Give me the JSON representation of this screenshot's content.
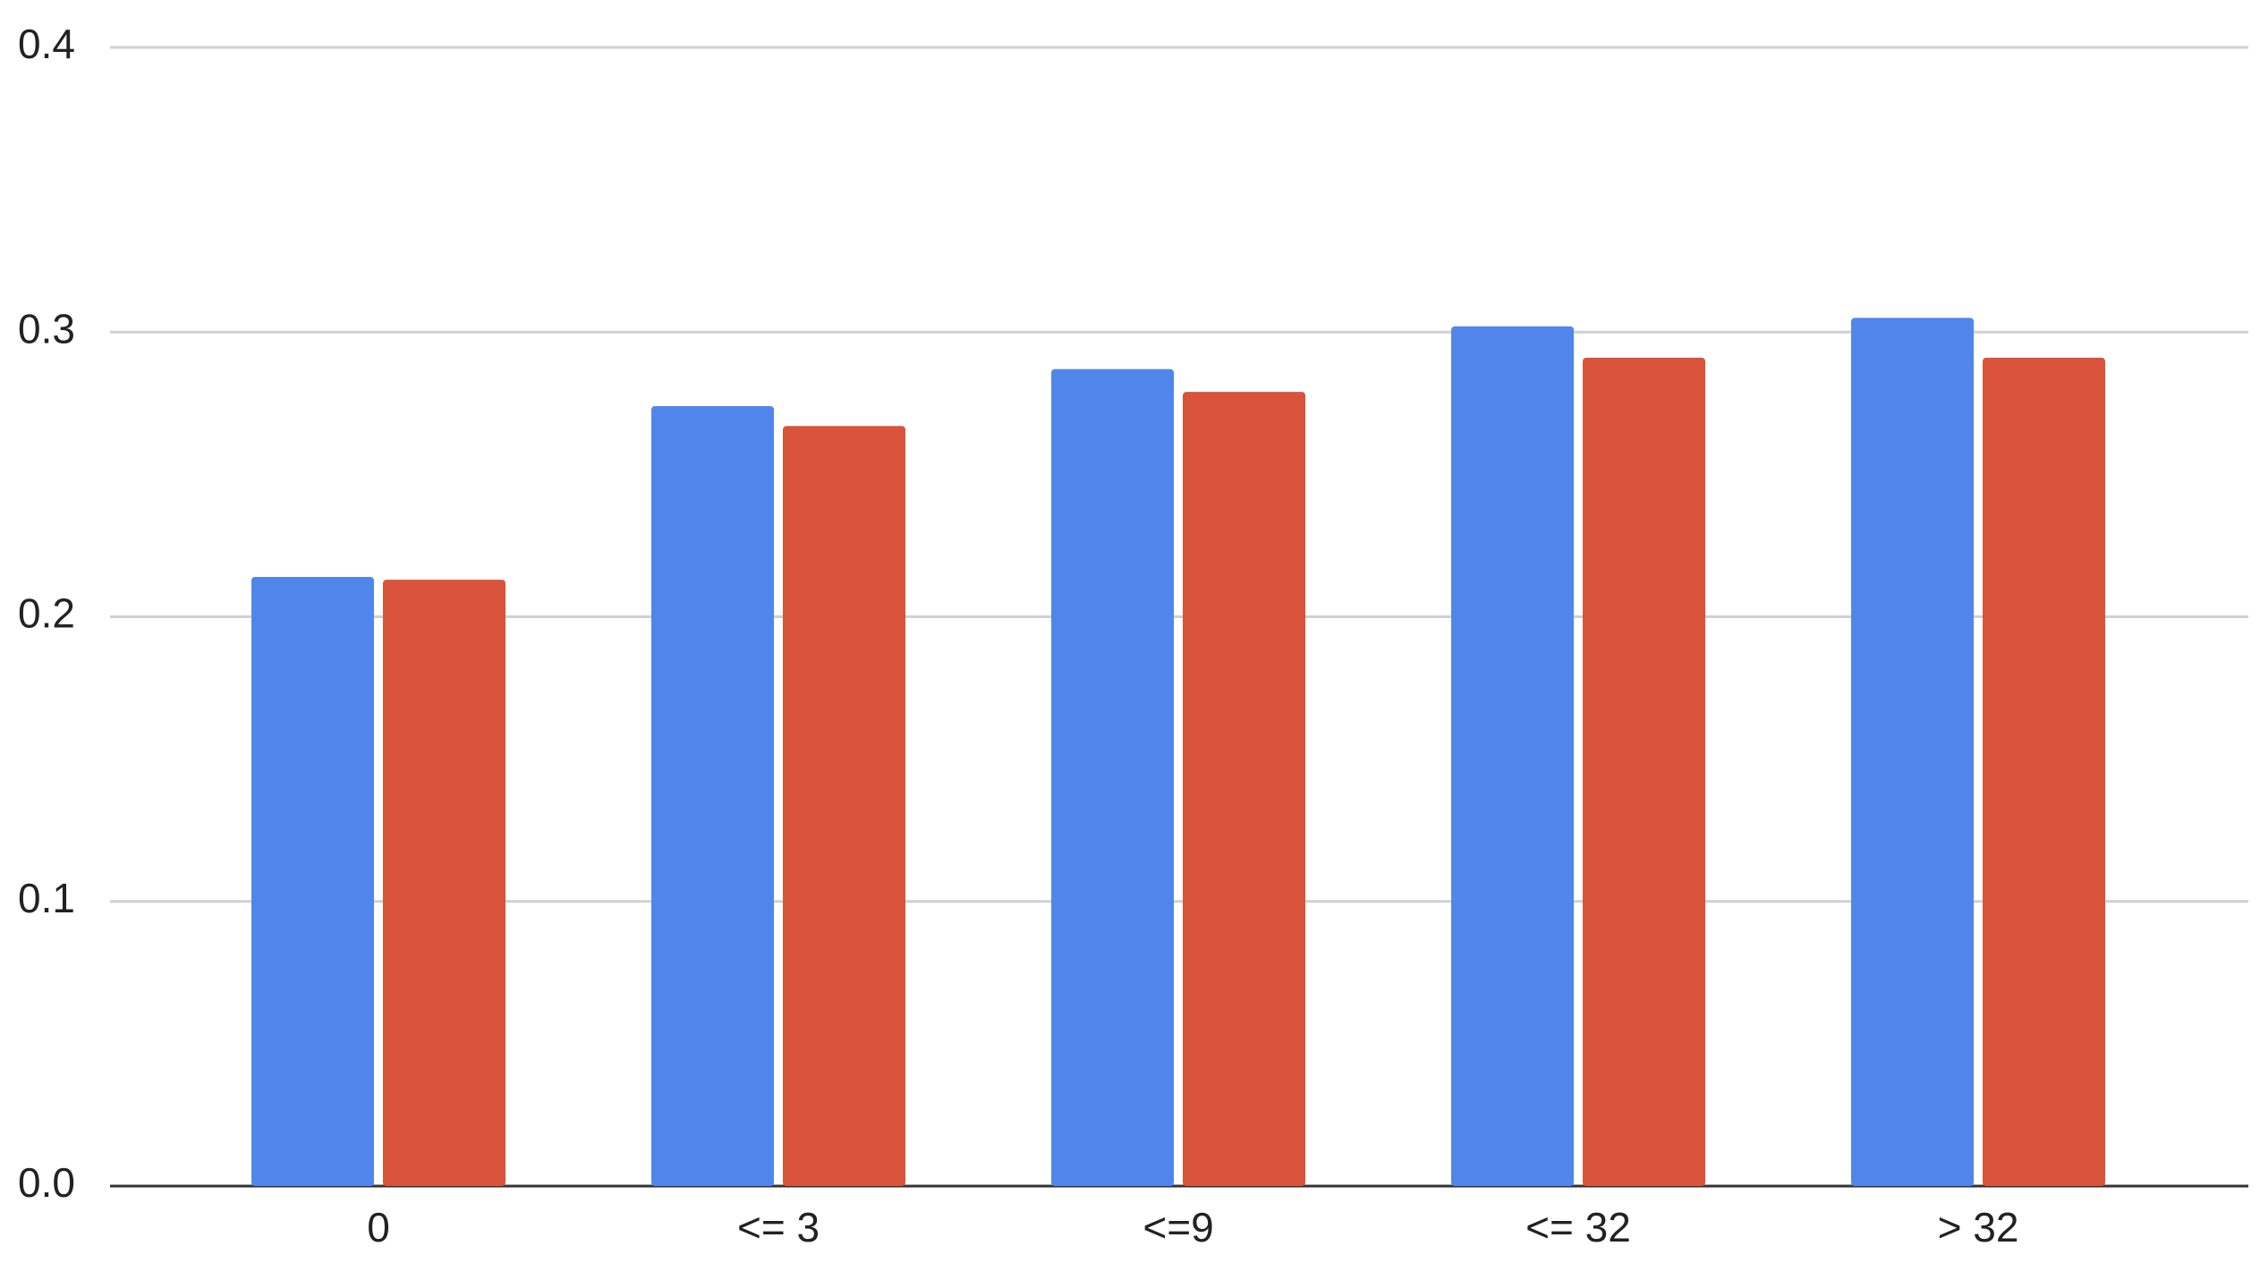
{
  "chart_data": {
    "type": "bar",
    "categories": [
      "0",
      "<= 3",
      "<=9",
      "<= 32",
      "> 32"
    ],
    "series": [
      {
        "color": "#5086ec",
        "values": [
          0.214,
          0.274,
          0.287,
          0.302,
          0.305
        ]
      },
      {
        "color": "#d9533b",
        "values": [
          0.213,
          0.267,
          0.279,
          0.291,
          0.291
        ]
      }
    ],
    "ylim": [
      0,
      0.4
    ],
    "yticks": [
      {
        "value": 0,
        "label": "0.0"
      },
      0.1,
      0.2,
      0.3,
      0.4
    ],
    "grid": true
  }
}
